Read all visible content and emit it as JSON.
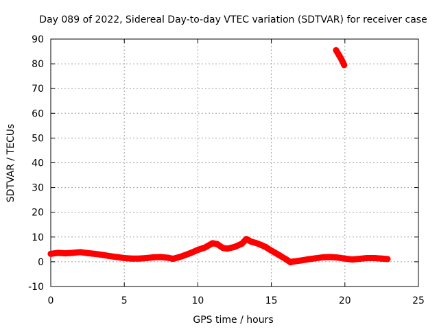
{
  "chart_data": {
    "type": "scatter",
    "title": "Day 089 of 2022, Sidereal Day-to-day VTEC variation (SDTVAR) for receiver case",
    "xlabel": "GPS time / hours",
    "ylabel": "SDTVAR / TECUs",
    "xlim": [
      0,
      25
    ],
    "ylim": [
      -10,
      90
    ],
    "xticks": [
      0,
      5,
      10,
      15,
      20,
      25
    ],
    "yticks": [
      -10,
      0,
      10,
      20,
      30,
      40,
      50,
      60,
      70,
      80,
      90
    ],
    "grid": true,
    "series_color": "#ff0000",
    "series": [
      {
        "name": "SDTVAR",
        "points": [
          [
            0.0,
            3.2
          ],
          [
            0.5,
            3.6
          ],
          [
            1.0,
            3.4
          ],
          [
            1.5,
            3.6
          ],
          [
            2.0,
            3.9
          ],
          [
            2.5,
            3.5
          ],
          [
            3.0,
            3.2
          ],
          [
            3.5,
            2.8
          ],
          [
            4.0,
            2.3
          ],
          [
            4.5,
            1.9
          ],
          [
            5.0,
            1.5
          ],
          [
            5.5,
            1.3
          ],
          [
            6.0,
            1.3
          ],
          [
            6.5,
            1.5
          ],
          [
            7.0,
            1.8
          ],
          [
            7.5,
            1.9
          ],
          [
            8.0,
            1.6
          ],
          [
            8.3,
            1.2
          ],
          [
            8.7,
            1.8
          ],
          [
            9.0,
            2.4
          ],
          [
            9.5,
            3.5
          ],
          [
            10.0,
            4.8
          ],
          [
            10.5,
            5.8
          ],
          [
            11.0,
            7.5
          ],
          [
            11.3,
            7.2
          ],
          [
            11.7,
            5.6
          ],
          [
            12.0,
            5.3
          ],
          [
            12.5,
            6.0
          ],
          [
            13.0,
            7.3
          ],
          [
            13.3,
            9.2
          ],
          [
            13.6,
            8.2
          ],
          [
            14.0,
            7.5
          ],
          [
            14.3,
            6.8
          ],
          [
            14.6,
            6.0
          ],
          [
            15.0,
            4.5
          ],
          [
            15.5,
            2.8
          ],
          [
            16.0,
            1.0
          ],
          [
            16.3,
            -0.2
          ],
          [
            16.5,
            0.1
          ],
          [
            17.0,
            0.5
          ],
          [
            17.5,
            1.0
          ],
          [
            18.0,
            1.4
          ],
          [
            18.5,
            1.8
          ],
          [
            19.0,
            1.9
          ],
          [
            19.5,
            1.7
          ],
          [
            20.0,
            1.3
          ],
          [
            20.5,
            0.9
          ],
          [
            21.0,
            1.2
          ],
          [
            21.5,
            1.5
          ],
          [
            22.0,
            1.5
          ],
          [
            22.5,
            1.3
          ],
          [
            22.9,
            1.1
          ]
        ]
      },
      {
        "name": "SDTVAR (outlier segment)",
        "points": [
          [
            19.4,
            85.5
          ],
          [
            19.5,
            84.5
          ],
          [
            19.6,
            83.5
          ],
          [
            19.7,
            82.5
          ],
          [
            19.8,
            81.4
          ],
          [
            19.9,
            80.2
          ],
          [
            19.95,
            79.5
          ]
        ]
      }
    ]
  }
}
